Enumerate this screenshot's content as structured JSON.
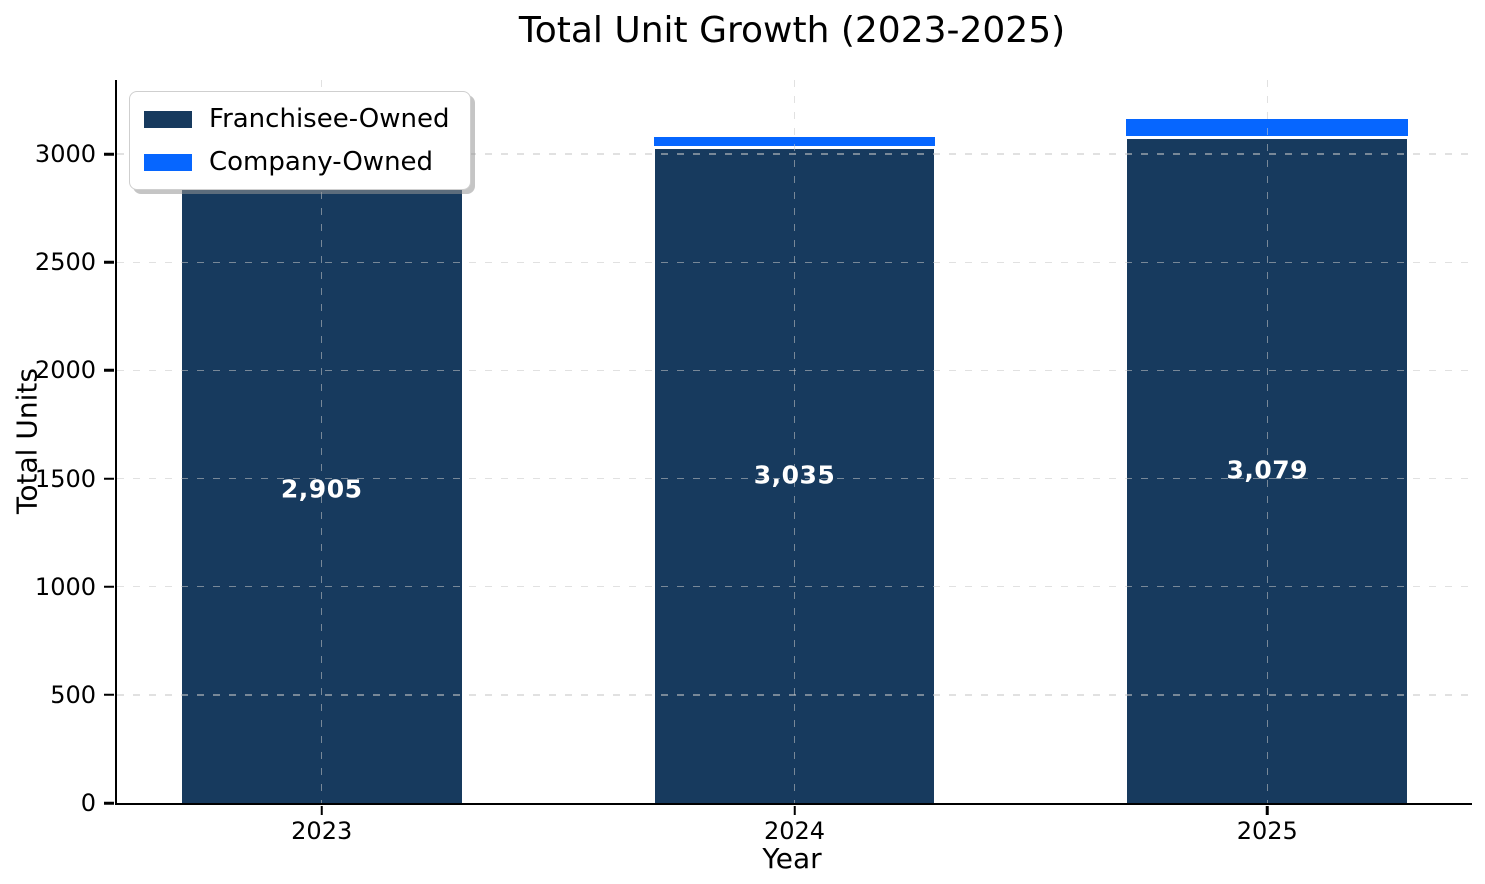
{
  "chart_data": {
    "type": "bar",
    "stacked": true,
    "title": "Total Unit Growth (2023-2025)",
    "xlabel": "Year",
    "ylabel": "Total Units",
    "categories": [
      "2023",
      "2024",
      "2025"
    ],
    "series": [
      {
        "name": "Franchisee-Owned",
        "color": "#173A5E",
        "values": [
          2905,
          3035,
          3079
        ],
        "bar_labels": [
          "2,905",
          "3,035",
          "3,079"
        ],
        "bar_label_color": "#ffffff"
      },
      {
        "name": "Company-Owned",
        "color": "#0666FF",
        "values": [
          40,
          50,
          90
        ],
        "bar_labels": [
          "",
          "",
          ""
        ]
      }
    ],
    "ylim": [
      0,
      3343
    ],
    "yticks": [
      0,
      500,
      1000,
      1500,
      2000,
      2500,
      3000
    ],
    "grid": {
      "show": true,
      "style": "dashed",
      "color": "#c8c8c8"
    },
    "legend_position": "upper left",
    "axis_color": "#000000",
    "bar_edge_color": "#ffffff"
  }
}
